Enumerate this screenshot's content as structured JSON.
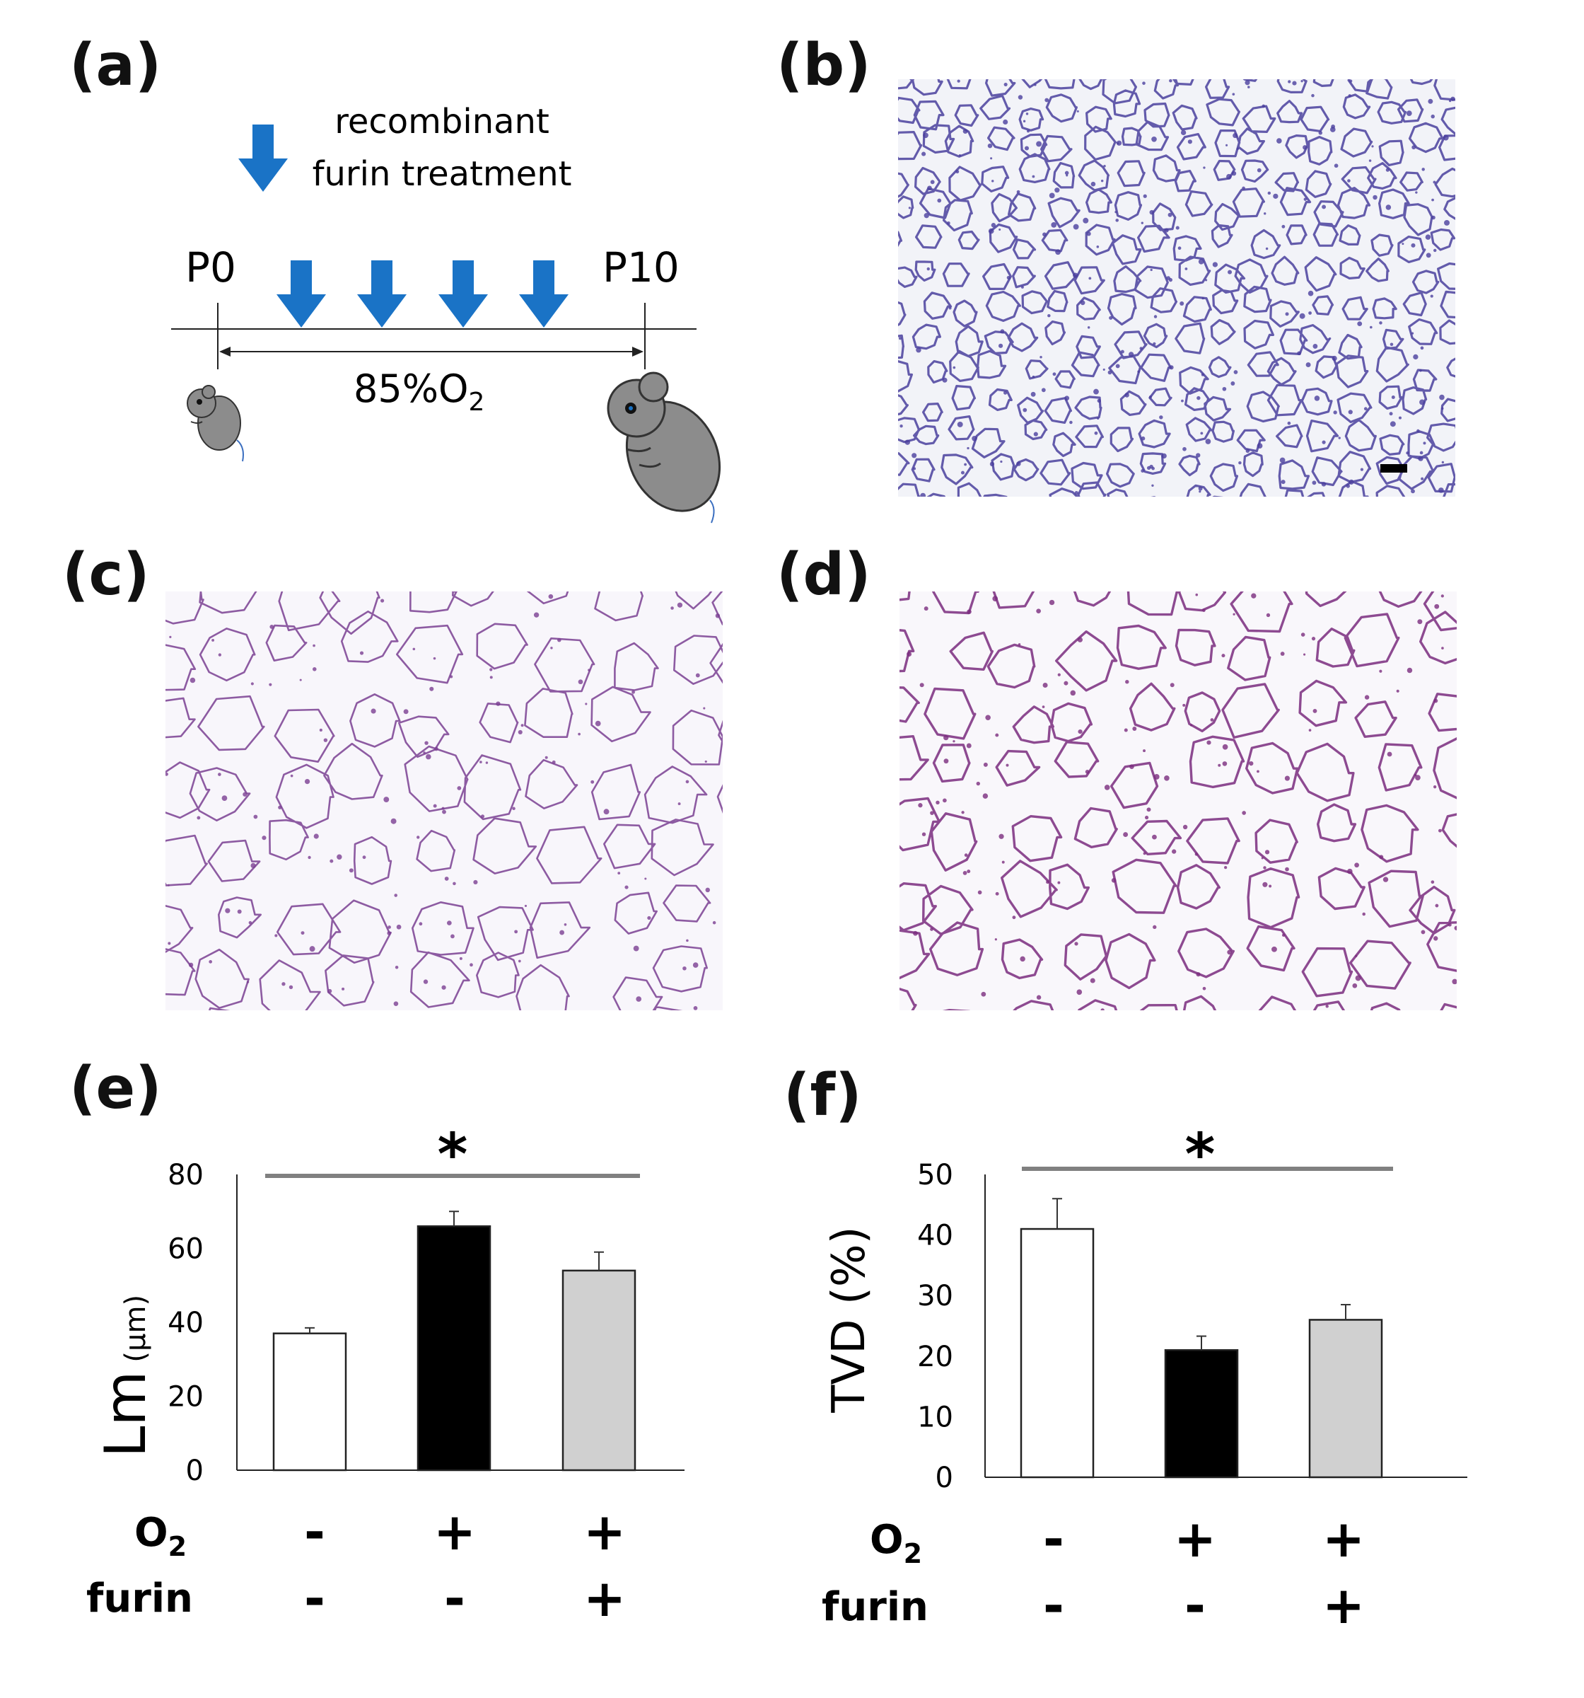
{
  "panel_labels": {
    "a": "(a)",
    "b": "(b)",
    "c": "(c)",
    "d": "(d)",
    "e": "(e)",
    "f": "(f)"
  },
  "schema": {
    "legend_line1": "recombinant",
    "legend_line2": "furin treatment",
    "start_label": "P0",
    "end_label": "P10",
    "exposure_label": "85%O",
    "exposure_sub": "2",
    "arrow_color": "#1a73c6",
    "mouse_color": "#8c8c8c"
  },
  "histology": {
    "b": {
      "stain_color": "#4a3f9e",
      "background": "#f2f3f8"
    },
    "c": {
      "stain_color": "#7a3f92",
      "background": "#f8f6fb"
    },
    "d": {
      "stain_color": "#7a2c7e",
      "background": "#f9f7fb"
    }
  },
  "treatment_rows": {
    "o2_label": "O",
    "o2_sub": "2",
    "furin_label": "furin",
    "o2": [
      "-",
      "+",
      "+"
    ],
    "furin": [
      "-",
      "-",
      "+"
    ]
  },
  "chart_data": [
    {
      "type": "bar",
      "categories": [
        "O2- furin-",
        "O2+ furin-",
        "O2+ furin+"
      ],
      "values": [
        37,
        66,
        54
      ],
      "errors": [
        1.5,
        4,
        5
      ],
      "ylabel": "Lm",
      "ylabel_unit": "(µm)",
      "ylim": [
        0,
        80
      ],
      "yticks": [
        "0",
        "20",
        "40",
        "60",
        "80"
      ],
      "bar_colors": [
        "#ffffff",
        "#000000",
        "#d0d0d0"
      ],
      "significance": "*"
    },
    {
      "type": "bar",
      "categories": [
        "O2- furin-",
        "O2+ furin-",
        "O2+ furin+"
      ],
      "values": [
        41,
        21,
        26
      ],
      "errors": [
        5,
        2.3,
        2.5
      ],
      "ylabel": "TVD (%)",
      "ylim": [
        0,
        50
      ],
      "yticks": [
        "0",
        "10",
        "20",
        "30",
        "40",
        "50"
      ],
      "bar_colors": [
        "#ffffff",
        "#000000",
        "#d0d0d0"
      ],
      "significance": "*"
    }
  ]
}
